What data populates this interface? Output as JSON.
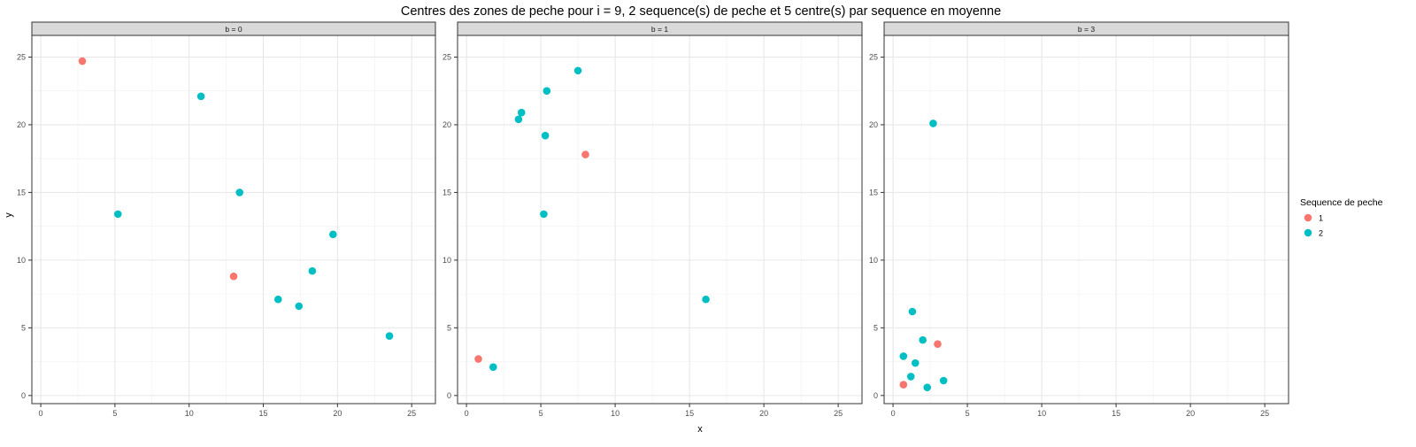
{
  "chart_data": {
    "type": "scatter",
    "title": "Centres des zones de peche pour i = 9, 2 sequence(s) de peche et 5 centre(s) par sequence en moyenne",
    "xlabel": "x",
    "ylabel": "y",
    "xlim": [
      -0.6,
      26.6
    ],
    "ylim": [
      -0.6,
      26.6
    ],
    "x_ticks": [
      0,
      5,
      10,
      15,
      20,
      25
    ],
    "y_ticks": [
      0,
      5,
      10,
      15,
      20,
      25
    ],
    "grid": true,
    "legend": {
      "title": "Sequence de peche",
      "position": "right",
      "entries": [
        {
          "label": "1",
          "color": "#F8766D"
        },
        {
          "label": "2",
          "color": "#00BFC4"
        }
      ]
    },
    "facets": [
      {
        "label": "b = 0",
        "series": [
          {
            "name": "1",
            "color": "#F8766D",
            "points": [
              [
                2.8,
                24.7
              ],
              [
                13.0,
                8.8
              ]
            ]
          },
          {
            "name": "2",
            "color": "#00BFC4",
            "points": [
              [
                10.8,
                22.1
              ],
              [
                5.2,
                13.4
              ],
              [
                13.4,
                15.0
              ],
              [
                19.7,
                11.9
              ],
              [
                18.3,
                9.2
              ],
              [
                16.0,
                7.1
              ],
              [
                17.4,
                6.6
              ],
              [
                23.5,
                4.4
              ]
            ]
          }
        ]
      },
      {
        "label": "b = 1",
        "series": [
          {
            "name": "1",
            "color": "#F8766D",
            "points": [
              [
                8.0,
                17.8
              ],
              [
                0.8,
                2.7
              ]
            ]
          },
          {
            "name": "2",
            "color": "#00BFC4",
            "points": [
              [
                7.5,
                24.0
              ],
              [
                5.4,
                22.5
              ],
              [
                3.7,
                20.9
              ],
              [
                3.5,
                20.4
              ],
              [
                5.3,
                19.2
              ],
              [
                5.2,
                13.4
              ],
              [
                16.1,
                7.1
              ],
              [
                1.8,
                2.1
              ]
            ]
          }
        ]
      },
      {
        "label": "b = 3",
        "series": [
          {
            "name": "1",
            "color": "#F8766D",
            "points": [
              [
                3.0,
                3.8
              ],
              [
                0.7,
                0.8
              ]
            ]
          },
          {
            "name": "2",
            "color": "#00BFC4",
            "points": [
              [
                2.7,
                20.1
              ],
              [
                1.3,
                6.2
              ],
              [
                2.0,
                4.1
              ],
              [
                0.7,
                2.9
              ],
              [
                1.5,
                2.4
              ],
              [
                1.2,
                1.4
              ],
              [
                3.4,
                1.1
              ],
              [
                2.3,
                0.6
              ]
            ]
          }
        ]
      }
    ]
  }
}
